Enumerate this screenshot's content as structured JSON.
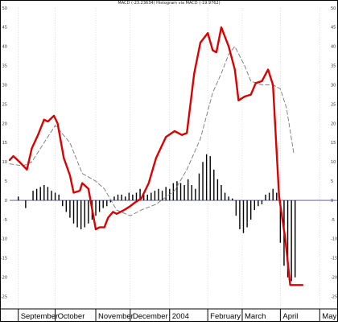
{
  "chart_data": {
    "type": "line",
    "title": "MACD (-23.23634) Histogram via MACD (-19.9762)",
    "x_axis": {
      "type": "date",
      "ticks": [
        {
          "label": "September",
          "x": "2003-09-01"
        },
        {
          "label": "October",
          "x": "2003-10-01"
        },
        {
          "label": "November",
          "x": "2003-11-03"
        },
        {
          "label": "December",
          "x": "2003-12-01"
        },
        {
          "label": "2004",
          "x": "2004-01-02"
        },
        {
          "label": "February",
          "x": "2004-02-02"
        },
        {
          "label": "March",
          "x": "2004-03-01"
        },
        {
          "label": "April",
          "x": "2004-04-01"
        },
        {
          "label": "May",
          "x": "2004-05-03"
        }
      ],
      "range": [
        "2003-08-25",
        "2004-05-10"
      ]
    },
    "y_axis": {
      "range": [
        -28,
        50
      ],
      "ticks": [
        -25,
        -20,
        -15,
        -10,
        -5,
        0,
        5,
        10,
        15,
        20,
        25,
        30,
        35,
        40,
        45,
        50
      ],
      "tick_labels_both_sides": true
    },
    "zero_line_color": "#4a4aa8",
    "grid": {
      "vertical_dotted": true,
      "horizontal": false
    },
    "series": [
      {
        "style": "solid-thick",
        "color": "#dd0000",
        "x": [
          "2003-08-25",
          "2003-08-28",
          "2003-09-02",
          "2003-09-08",
          "2003-09-12",
          "2003-09-17",
          "2003-09-22",
          "2003-09-25",
          "2003-09-30",
          "2003-10-03",
          "2003-10-08",
          "2003-10-13",
          "2003-10-16",
          "2003-10-21",
          "2003-10-23",
          "2003-10-28",
          "2003-11-03",
          "2003-11-06",
          "2003-11-10",
          "2003-11-13",
          "2003-11-17",
          "2003-11-20",
          "2003-11-26",
          "2003-12-01",
          "2003-12-05",
          "2003-12-10",
          "2003-12-16",
          "2003-12-22",
          "2003-12-30",
          "2004-01-06",
          "2004-01-12",
          "2004-01-16",
          "2004-01-22",
          "2004-01-27",
          "2004-02-02",
          "2004-02-06",
          "2004-02-09",
          "2004-02-13",
          "2004-02-19",
          "2004-02-24",
          "2004-02-27",
          "2004-03-03",
          "2004-03-08",
          "2004-03-12",
          "2004-03-17",
          "2004-03-22",
          "2004-03-26",
          "2004-03-31",
          "2004-04-05",
          "2004-04-09",
          "2004-04-14",
          "2004-04-19"
        ],
        "y": [
          10.5,
          11.5,
          10,
          8,
          13.5,
          17,
          21,
          20.5,
          22,
          20,
          11,
          6.5,
          2,
          2.5,
          4.5,
          3,
          -7.5,
          -7,
          -7,
          -4.5,
          -3,
          -3.5,
          -2.5,
          -1.5,
          -0.5,
          0.5,
          4.5,
          11,
          16.5,
          18,
          17,
          17.5,
          33,
          41,
          43.5,
          39,
          38.5,
          45,
          40,
          34,
          26,
          27,
          27.5,
          30.5,
          31,
          34,
          30,
          1,
          -10,
          -22,
          -22,
          -22
        ]
      },
      {
        "style": "dashed-thin",
        "color": "#777777",
        "x": [
          "2003-08-25",
          "2003-09-05",
          "2003-09-12",
          "2003-09-22",
          "2003-10-01",
          "2003-10-13",
          "2003-10-23",
          "2003-11-03",
          "2003-11-10",
          "2003-11-20",
          "2003-12-01",
          "2003-12-10",
          "2003-12-22",
          "2004-01-06",
          "2004-01-16",
          "2004-01-27",
          "2004-02-06",
          "2004-02-13",
          "2004-02-19",
          "2004-02-24",
          "2004-03-03",
          "2004-03-08",
          "2004-03-17",
          "2004-03-26",
          "2004-04-01",
          "2004-04-06",
          "2004-04-12"
        ],
        "y": [
          9.5,
          9,
          10,
          15,
          19.5,
          15,
          7,
          5,
          3,
          -2.5,
          -4,
          -2.5,
          -1,
          2.5,
          8,
          16,
          28,
          33,
          38,
          40,
          35,
          31,
          30,
          30,
          29,
          24,
          12
        ]
      },
      {
        "style": "histogram",
        "color": "#000000",
        "x": [
          "2003-09-01",
          "2003-09-07",
          "2003-09-13",
          "2003-09-16",
          "2003-09-19",
          "2003-09-22",
          "2003-09-25",
          "2003-09-28",
          "2003-10-01",
          "2003-10-04",
          "2003-10-07",
          "2003-10-10",
          "2003-10-13",
          "2003-10-16",
          "2003-10-19",
          "2003-10-22",
          "2003-10-25",
          "2003-10-28",
          "2003-10-31",
          "2003-11-03",
          "2003-11-06",
          "2003-11-09",
          "2003-11-12",
          "2003-11-15",
          "2003-11-18",
          "2003-11-21",
          "2003-11-24",
          "2003-11-27",
          "2003-11-30",
          "2003-12-03",
          "2003-12-06",
          "2003-12-09",
          "2003-12-12",
          "2003-12-15",
          "2003-12-18",
          "2003-12-21",
          "2003-12-24",
          "2003-12-27",
          "2003-12-30",
          "2004-01-02",
          "2004-01-05",
          "2004-01-08",
          "2004-01-11",
          "2004-01-14",
          "2004-01-17",
          "2004-01-20",
          "2004-01-23",
          "2004-01-26",
          "2004-01-29",
          "2004-02-01",
          "2004-02-04",
          "2004-02-07",
          "2004-02-10",
          "2004-02-13",
          "2004-02-16",
          "2004-02-19",
          "2004-02-22",
          "2004-02-25",
          "2004-02-28",
          "2004-03-02",
          "2004-03-05",
          "2004-03-08",
          "2004-03-11",
          "2004-03-14",
          "2004-03-17",
          "2004-03-20",
          "2004-03-23",
          "2004-03-26",
          "2004-03-29",
          "2004-04-01",
          "2004-04-04",
          "2004-04-07",
          "2004-04-10",
          "2004-04-13"
        ],
        "y": [
          1,
          -2,
          2.5,
          3,
          3.5,
          4,
          3.5,
          2.5,
          2,
          1.5,
          -1.5,
          -3,
          -4.5,
          -6,
          -7,
          -7.5,
          -7,
          -6,
          -5,
          -4,
          -3,
          -2,
          -1.5,
          -0.5,
          1,
          1.5,
          1.5,
          1,
          2,
          1.5,
          2,
          3,
          2,
          1.5,
          2,
          2.5,
          3,
          2.5,
          3.5,
          3,
          4.5,
          5,
          4.5,
          4,
          5.5,
          4,
          3,
          7,
          10,
          12,
          11.5,
          8,
          5.5,
          4,
          2,
          1,
          0.5,
          -4,
          -7.5,
          -8.5,
          -7,
          -5,
          -2.5,
          -1.5,
          -1,
          1.5,
          2,
          3,
          2,
          -11,
          -17,
          -20,
          -21,
          -20
        ]
      }
    ]
  }
}
